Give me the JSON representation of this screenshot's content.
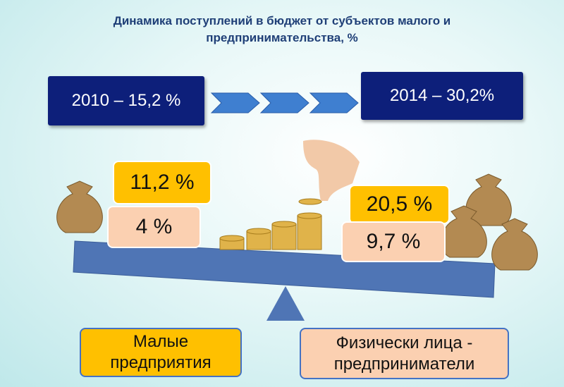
{
  "header": {
    "title_lines": [
      "Динамика поступлений в бюджет от субъектов малого и",
      "предпринимательства, %"
    ]
  },
  "summary": {
    "start": "2010  – 15,2 %",
    "end": "2014 – 30,2%"
  },
  "left_group": {
    "top": "11,2 %",
    "bottom": "4 %",
    "label": "Малые предприятия"
  },
  "right_group": {
    "top": "20,5 %",
    "bottom": "9,7 %",
    "label": "Физически лица - предприниматели"
  }
}
